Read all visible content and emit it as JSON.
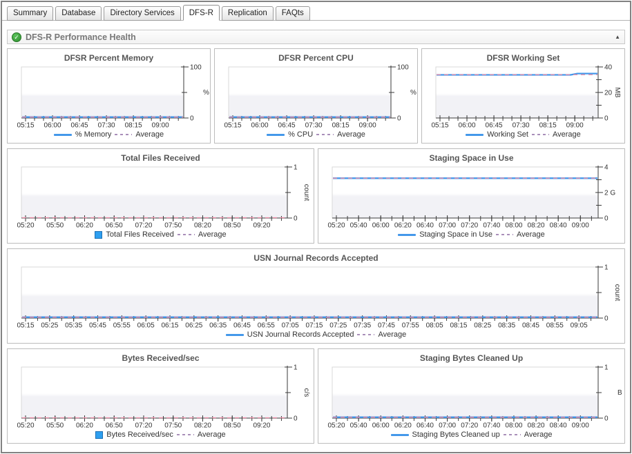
{
  "tabs": [
    {
      "label": "Summary",
      "active": false
    },
    {
      "label": "Database",
      "active": false
    },
    {
      "label": "Directory Services",
      "active": false
    },
    {
      "label": "DFS-R",
      "active": true
    },
    {
      "label": "Replication",
      "active": false
    },
    {
      "label": "FAQts",
      "active": false
    }
  ],
  "section": {
    "title": "DFS-R Performance Health",
    "status_glyph": "✓",
    "collapse_glyph": "▲"
  },
  "colors": {
    "series_line": "#4498ea",
    "bar_fill": "#2e9ff0",
    "bar_border": "#1b6fb4",
    "average_line": "#ec8ba4",
    "legend_dash": "#a98fb9",
    "axis": "#3a3a3a",
    "plot_border": "#d8d8d8",
    "plot_band": "#f2f2f6",
    "tick_text": "#333333"
  },
  "chart_data": [
    {
      "title": "DFSR Percent Memory",
      "type": "line",
      "series": [
        {
          "name": "% Memory",
          "values": [
            0.8,
            0.8
          ]
        }
      ],
      "average": 0.8,
      "x_tick_labels": [
        "05:15",
        "06:00",
        "06:45",
        "07:30",
        "08:15",
        "09:00"
      ],
      "x_minor_between": 2,
      "ylim": [
        0,
        100
      ],
      "y_ticks": [
        {
          "v": 0,
          "l": "0"
        },
        {
          "v": 50,
          "l": ""
        },
        {
          "v": 100,
          "l": "100"
        }
      ],
      "unit": "%",
      "unit_rotated": false,
      "legend": [
        {
          "swatch": "line",
          "label": "% Memory"
        },
        {
          "swatch": "dash",
          "label": "Average"
        }
      ],
      "layout": {
        "row": 1
      }
    },
    {
      "title": "DFSR Percent CPU",
      "type": "line",
      "series": [
        {
          "name": "% CPU",
          "values": [
            0.8,
            0.6,
            1.0,
            0.7,
            0.9,
            1.1,
            0.7,
            0.9,
            0.8,
            1.0,
            0.7,
            0.9,
            0.8,
            0.6,
            1.0,
            0.8,
            0.9,
            0.7,
            1.0,
            0.8,
            0.9,
            0.7,
            0.9,
            0.8
          ]
        }
      ],
      "average": 0.85,
      "x_tick_labels": [
        "05:15",
        "06:00",
        "06:45",
        "07:30",
        "08:15",
        "09:00"
      ],
      "x_minor_between": 2,
      "ylim": [
        0,
        100
      ],
      "y_ticks": [
        {
          "v": 0,
          "l": "0"
        },
        {
          "v": 50,
          "l": ""
        },
        {
          "v": 100,
          "l": "100"
        }
      ],
      "unit": "%",
      "unit_rotated": false,
      "legend": [
        {
          "swatch": "line",
          "label": "% CPU"
        },
        {
          "swatch": "dash",
          "label": "Average"
        }
      ],
      "layout": {
        "row": 1
      }
    },
    {
      "title": "DFSR Working Set",
      "type": "line",
      "series": [
        {
          "name": "Working Set",
          "values": [
            33.8,
            33.8,
            33.8,
            33.8,
            33.8,
            33.8,
            33.8,
            33.8,
            33.8,
            33.8,
            33.8,
            33.8,
            33.8,
            33.8,
            33.8,
            33.8,
            33.8,
            33.8,
            33.8,
            33.8,
            33.8,
            34.8,
            34.8,
            34.8,
            34.8
          ]
        }
      ],
      "average": 33.9,
      "x_tick_labels": [
        "05:15",
        "06:00",
        "06:45",
        "07:30",
        "08:15",
        "09:00"
      ],
      "x_minor_between": 2,
      "ylim": [
        0,
        40
      ],
      "y_ticks": [
        {
          "v": 0,
          "l": "0"
        },
        {
          "v": 10,
          "l": ""
        },
        {
          "v": 20,
          "l": "20"
        },
        {
          "v": 30,
          "l": ""
        },
        {
          "v": 40,
          "l": "40"
        }
      ],
      "unit": "MB",
      "unit_rotated": true,
      "legend": [
        {
          "swatch": "line",
          "label": "Working Set"
        },
        {
          "swatch": "dash",
          "label": "Average"
        }
      ],
      "layout": {
        "row": 1
      }
    },
    {
      "title": "Total Files Received",
      "type": "bar",
      "series": [
        {
          "name": "Total Files Received",
          "values": [
            0
          ]
        }
      ],
      "average": 0,
      "x_tick_labels": [
        "05:20",
        "05:50",
        "06:20",
        "06:50",
        "07:20",
        "07:50",
        "08:20",
        "08:50",
        "09:20"
      ],
      "x_minor_between": 2,
      "ylim": [
        0,
        1
      ],
      "y_ticks": [
        {
          "v": 0,
          "l": "0"
        },
        {
          "v": 0.5,
          "l": ""
        },
        {
          "v": 1,
          "l": "1"
        }
      ],
      "unit": "count",
      "unit_rotated": true,
      "legend": [
        {
          "swatch": "square",
          "label": "Total Files Received"
        },
        {
          "swatch": "dash",
          "label": "Average"
        }
      ],
      "layout": {
        "row": 2
      }
    },
    {
      "title": "Staging Space in Use",
      "type": "line",
      "series": [
        {
          "name": "Staging Space in Use",
          "values": [
            3.12,
            3.12
          ]
        }
      ],
      "average": 3.12,
      "x_tick_labels": [
        "05:20",
        "05:40",
        "06:00",
        "06:20",
        "06:40",
        "07:00",
        "07:20",
        "07:40",
        "08:00",
        "08:20",
        "08:40",
        "09:00"
      ],
      "x_minor_between": 1,
      "ylim": [
        0,
        4
      ],
      "y_ticks": [
        {
          "v": 0,
          "l": "0"
        },
        {
          "v": 1,
          "l": ""
        },
        {
          "v": 2,
          "l": "2 G"
        },
        {
          "v": 3,
          "l": ""
        },
        {
          "v": 4,
          "l": "4"
        }
      ],
      "unit": "",
      "unit_rotated": false,
      "legend": [
        {
          "swatch": "line",
          "label": "Staging Space in Use"
        },
        {
          "swatch": "dash",
          "label": "Average"
        }
      ],
      "layout": {
        "row": 2
      }
    },
    {
      "title": "USN Journal Records Accepted",
      "type": "line",
      "series": [
        {
          "name": "USN Journal Records Accepted",
          "values": [
            0.01,
            0.01
          ]
        }
      ],
      "average": 0.01,
      "x_tick_labels": [
        "05:15",
        "05:25",
        "05:35",
        "05:45",
        "05:55",
        "06:05",
        "06:15",
        "06:25",
        "06:35",
        "06:45",
        "06:55",
        "07:05",
        "07:15",
        "07:25",
        "07:35",
        "07:45",
        "07:55",
        "08:05",
        "08:15",
        "08:25",
        "08:35",
        "08:45",
        "08:55",
        "09:05"
      ],
      "x_minor_between": 1,
      "ylim": [
        0,
        1
      ],
      "y_ticks": [
        {
          "v": 0,
          "l": "0"
        },
        {
          "v": 0.5,
          "l": ""
        },
        {
          "v": 1,
          "l": "1"
        }
      ],
      "unit": "count",
      "unit_rotated": true,
      "legend": [
        {
          "swatch": "line",
          "label": "USN Journal Records Accepted"
        },
        {
          "swatch": "dash",
          "label": "Average"
        }
      ],
      "layout": {
        "row": 3
      }
    },
    {
      "title": "Bytes Received/sec",
      "type": "bar",
      "series": [
        {
          "name": "Bytes Received/sec",
          "values": [
            0
          ]
        }
      ],
      "average": 0,
      "x_tick_labels": [
        "05:20",
        "05:50",
        "06:20",
        "06:50",
        "07:20",
        "07:50",
        "08:20",
        "08:50",
        "09:20"
      ],
      "x_minor_between": 2,
      "ylim": [
        0,
        1
      ],
      "y_ticks": [
        {
          "v": 0,
          "l": "0"
        },
        {
          "v": 0.5,
          "l": ""
        },
        {
          "v": 1,
          "l": "1"
        }
      ],
      "unit": "c/s",
      "unit_rotated": true,
      "legend": [
        {
          "swatch": "square",
          "label": "Bytes Received/sec"
        },
        {
          "swatch": "dash",
          "label": "Average"
        }
      ],
      "layout": {
        "row": 4
      }
    },
    {
      "title": "Staging Bytes Cleaned Up",
      "type": "line",
      "series": [
        {
          "name": "Staging Bytes Cleaned up",
          "values": [
            0.01,
            0.01
          ]
        }
      ],
      "average": 0.01,
      "x_tick_labels": [
        "05:20",
        "05:40",
        "06:00",
        "06:20",
        "06:40",
        "07:00",
        "07:20",
        "07:40",
        "08:00",
        "08:20",
        "08:40",
        "09:00"
      ],
      "x_minor_between": 1,
      "ylim": [
        0,
        1
      ],
      "y_ticks": [
        {
          "v": 0,
          "l": "0"
        },
        {
          "v": 0.5,
          "l": ""
        },
        {
          "v": 1,
          "l": "1"
        }
      ],
      "unit": "B",
      "unit_rotated": false,
      "legend": [
        {
          "swatch": "line",
          "label": "Staging Bytes Cleaned up"
        },
        {
          "swatch": "dash",
          "label": "Average"
        }
      ],
      "layout": {
        "row": 4
      }
    }
  ]
}
